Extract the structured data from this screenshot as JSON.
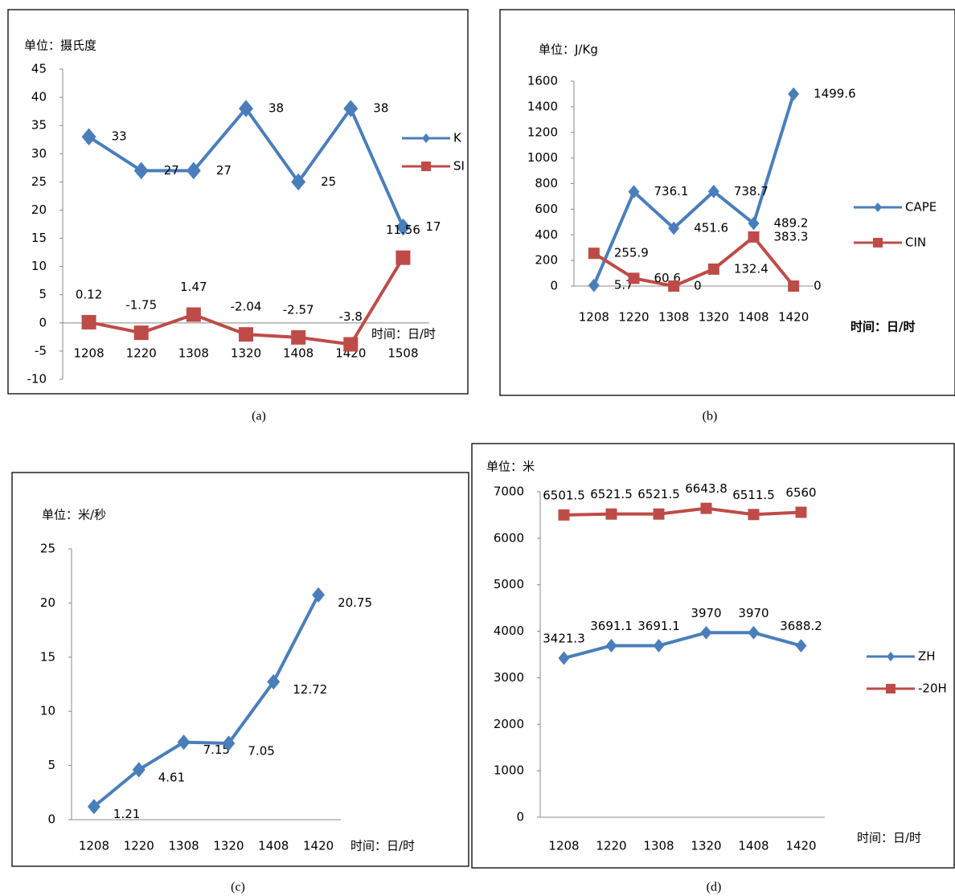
{
  "chart_data": [
    {
      "type": "line",
      "title": "单位：摄氏度",
      "x_label": "时间：日/时",
      "caption": "(a)",
      "categories": [
        "1208",
        "1220",
        "1308",
        "1320",
        "1408",
        "1420",
        "1508"
      ],
      "series": [
        {
          "name": "K",
          "color": "#4a7ebb",
          "marker": "diamond",
          "values": [
            33,
            27,
            27,
            38,
            25,
            38,
            17
          ]
        },
        {
          "name": "SI",
          "color": "#be4b48",
          "marker": "square",
          "values": [
            0.12,
            -1.75,
            1.47,
            -2.04,
            -2.57,
            -3.8,
            11.56
          ]
        }
      ],
      "ylim": [
        -10,
        45
      ],
      "yticks": [
        -10,
        -5,
        0,
        5,
        10,
        15,
        20,
        25,
        30,
        35,
        40,
        45
      ],
      "grid": false,
      "legend": "right"
    },
    {
      "type": "line",
      "title": "单位：J/Kg",
      "x_label": "时间：日/时",
      "caption": "(b)",
      "categories": [
        "1208",
        "1220",
        "1308",
        "1320",
        "1408",
        "1420"
      ],
      "series": [
        {
          "name": "CAPE",
          "color": "#4a7ebb",
          "marker": "diamond",
          "values": [
            5.7,
            736.1,
            451.6,
            738.7,
            489.2,
            1499.6
          ]
        },
        {
          "name": "CIN",
          "color": "#be4b48",
          "marker": "square",
          "values": [
            255.9,
            60.6,
            0,
            132.4,
            383.3,
            0
          ]
        }
      ],
      "ylim": [
        0,
        1600
      ],
      "yticks": [
        0,
        200,
        400,
        600,
        800,
        1000,
        1200,
        1400,
        1600
      ],
      "grid": false,
      "legend": "right"
    },
    {
      "type": "line",
      "title": "单位：米/秒",
      "x_label": "时间：日/时",
      "caption": "(c)",
      "categories": [
        "1208",
        "1220",
        "1308",
        "1320",
        "1408",
        "1420"
      ],
      "series": [
        {
          "color": "#4a7ebb",
          "marker": "diamond",
          "values": [
            1.21,
            4.61,
            7.15,
            7.05,
            12.72,
            20.75
          ]
        }
      ],
      "ylim": [
        0,
        25
      ],
      "yticks": [
        0,
        5,
        10,
        15,
        20,
        25
      ],
      "grid": false
    },
    {
      "type": "line",
      "title": "单位：米",
      "x_label": "时间：日/时",
      "caption": "(d)",
      "categories": [
        "1208",
        "1220",
        "1308",
        "1320",
        "1408",
        "1420"
      ],
      "series": [
        {
          "name": "ZH",
          "color": "#4a7ebb",
          "marker": "diamond",
          "values": [
            3421.3,
            3691.1,
            3691.1,
            3970,
            3970,
            3688.2
          ]
        },
        {
          "name": "-20H",
          "color": "#be4b48",
          "marker": "square",
          "values": [
            6501.5,
            6521.5,
            6521.5,
            6643.8,
            6511.5,
            6560
          ]
        }
      ],
      "ylim": [
        0,
        7000
      ],
      "yticks": [
        0,
        1000,
        2000,
        3000,
        4000,
        5000,
        6000,
        7000
      ],
      "grid": false,
      "legend": "right"
    }
  ]
}
